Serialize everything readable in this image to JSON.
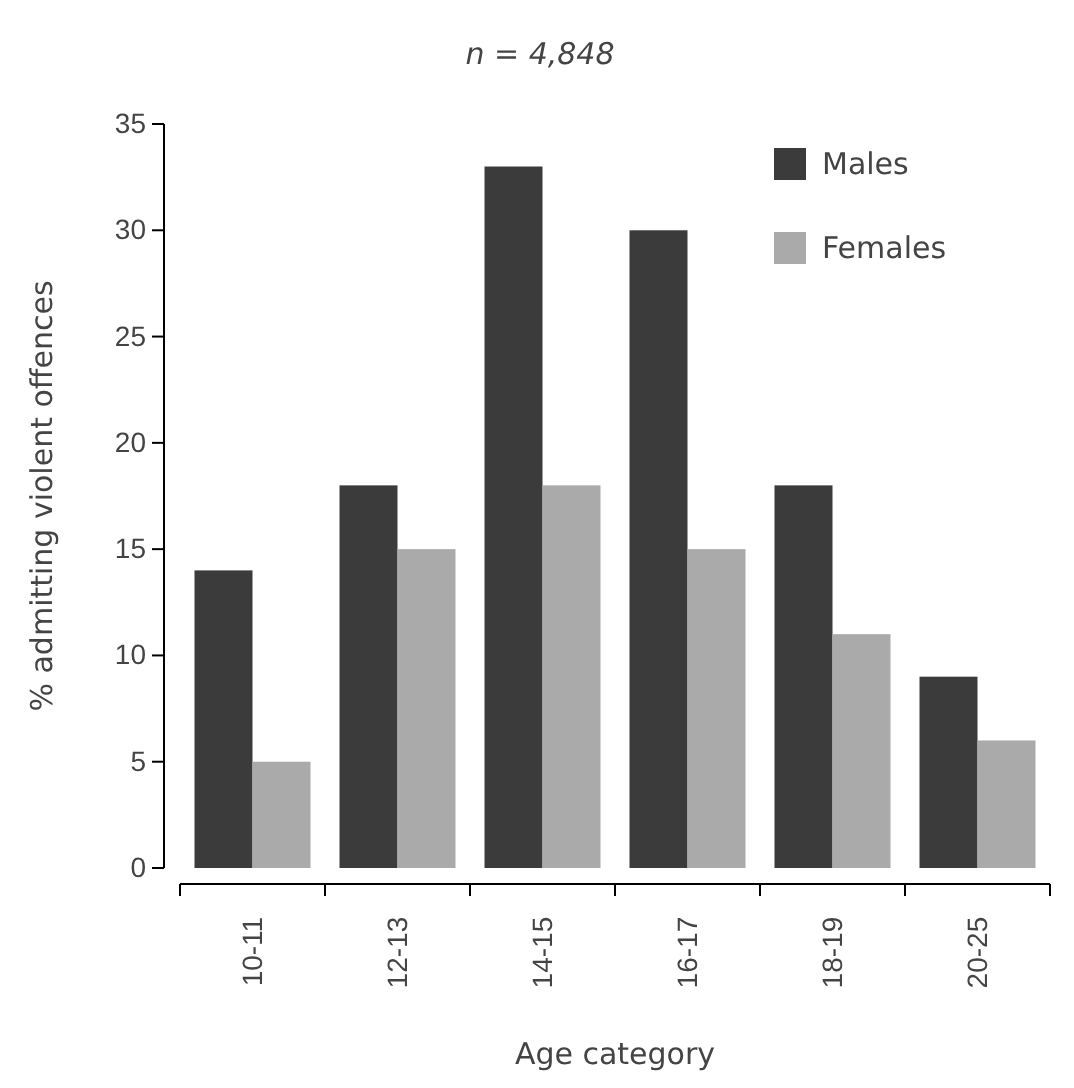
{
  "chart_data": {
    "type": "bar",
    "title": "n = 4,848",
    "xlabel": "Age category",
    "ylabel": "% admitting violent offences",
    "categories": [
      "10-11",
      "12-13",
      "14-15",
      "16-17",
      "18-19",
      "20-25"
    ],
    "series": [
      {
        "name": "Males",
        "color": "#3b3b3b",
        "values": [
          14,
          18,
          33,
          30,
          18,
          9
        ]
      },
      {
        "name": "Females",
        "color": "#aaaaaa",
        "values": [
          5,
          15,
          18,
          15,
          11,
          6
        ]
      }
    ],
    "ylim": [
      0,
      35
    ],
    "yticks": [
      0,
      5,
      10,
      15,
      20,
      25,
      30,
      35
    ],
    "grid": false,
    "legend": "top right"
  }
}
